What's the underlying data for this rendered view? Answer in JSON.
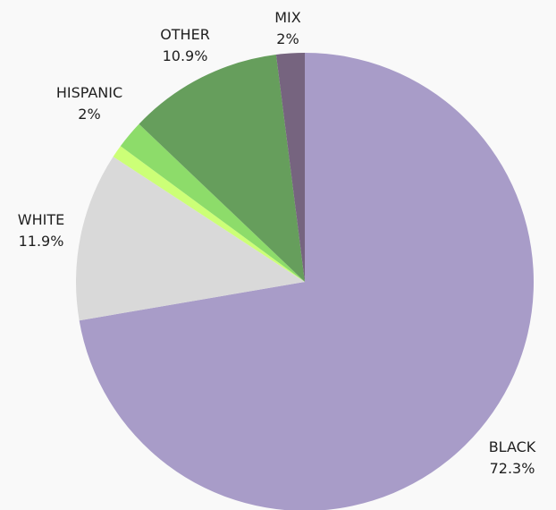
{
  "chart_data": {
    "type": "pie",
    "title": "",
    "slices": [
      {
        "label": "BLACK",
        "value": 72.3,
        "display": "72.3%",
        "color": "#a89cc8"
      },
      {
        "label": "WHITE",
        "value": 11.9,
        "display": "11.9%",
        "color": "#d9d9d9"
      },
      {
        "label": "",
        "value": 0.9,
        "display": "",
        "color": "#ccff77"
      },
      {
        "label": "HISPANIC",
        "value": 2,
        "display": "2%",
        "color": "#8ddc6a"
      },
      {
        "label": "OTHER",
        "value": 10.9,
        "display": "10.9%",
        "color": "#669e5c"
      },
      {
        "label": "MIX",
        "value": 2,
        "display": "2%",
        "color": "#76647f"
      }
    ],
    "start_angle_deg": 0,
    "direction": "clockwise",
    "legend": "none",
    "grid": false
  }
}
